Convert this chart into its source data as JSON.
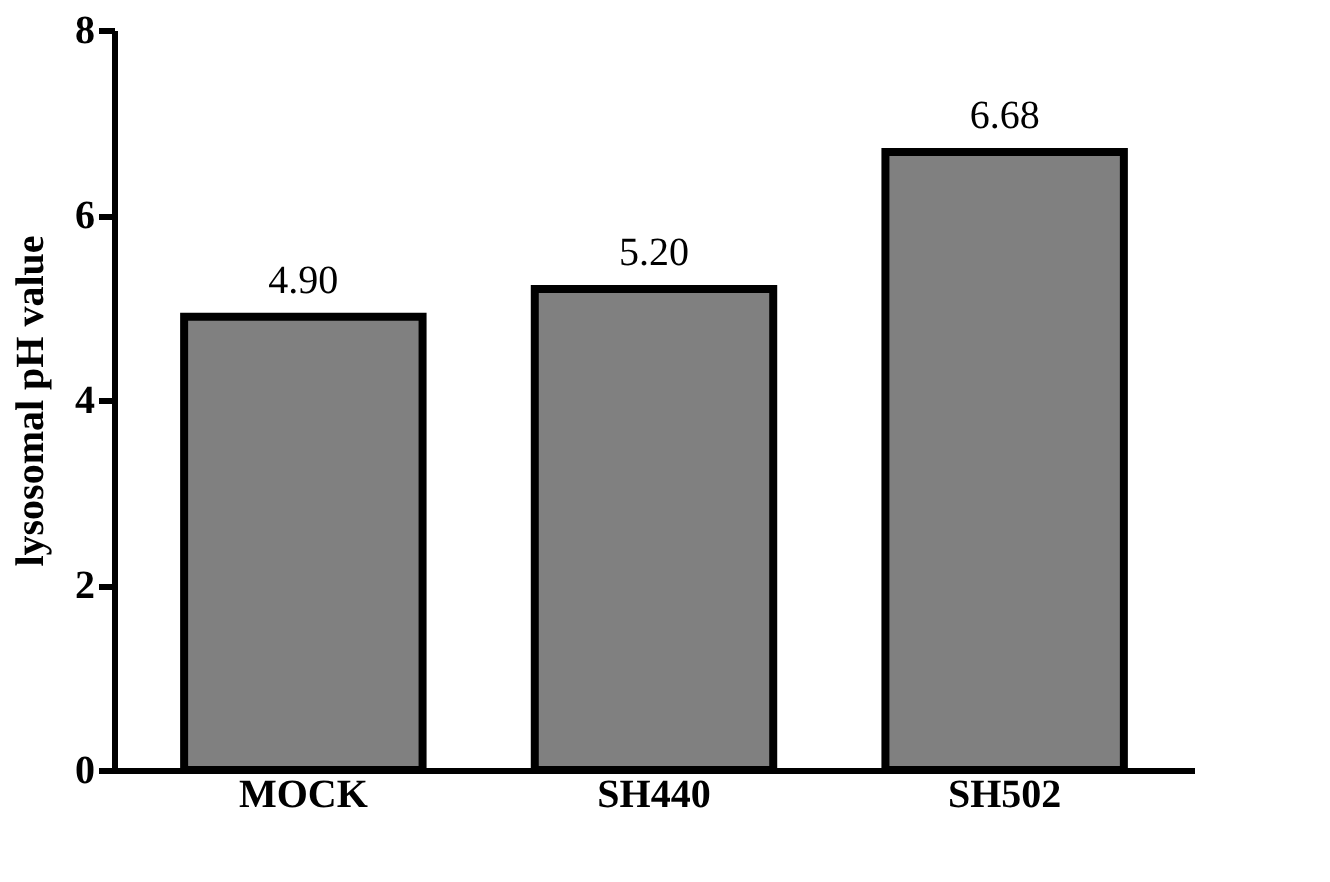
{
  "chart_data": {
    "type": "bar",
    "ylabel": "lysosomal pH value",
    "categories": [
      "MOCK",
      "SH440",
      "SH502"
    ],
    "values": [
      4.9,
      5.2,
      6.68
    ],
    "value_labels": [
      "4.90",
      "5.20",
      "6.68"
    ],
    "color": "#808080",
    "ylim": [
      0,
      8
    ],
    "yticks": [
      0,
      2,
      4,
      6,
      8
    ],
    "grid": false
  }
}
